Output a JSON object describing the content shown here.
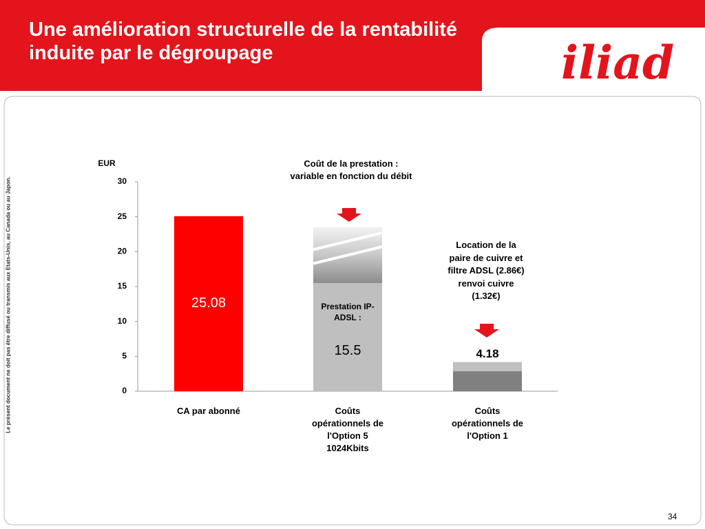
{
  "title": "Une amélioration structurelle de la rentabilité induite par le dégroupage",
  "logo": "iliad",
  "disclaimer": "Le présent document ne doit pas être diffusé ou transmis aux Etats-Unis, au Canada ou au Japon.",
  "page_number": "34",
  "chart_data": {
    "type": "bar",
    "stacked": true,
    "y_label": "EUR",
    "categories": [
      "CA par abonné",
      "Coûts opérationnels de l'Option 5 1024Kbits",
      "Coûts opérationnels de l'Option 1"
    ],
    "series": [
      {
        "color": "#ff0000",
        "values": [
          25.08,
          null,
          null
        ],
        "value_labels": [
          "25.08",
          null,
          null
        ]
      },
      {
        "name": "Prestation IP-ADSL :",
        "color": "#bfbfbf",
        "values": [
          null,
          15.5,
          null
        ],
        "value_labels": [
          null,
          "15.5",
          null
        ]
      },
      {
        "color": "gradient",
        "values": [
          null,
          8,
          null
        ]
      },
      {
        "color": "#808080",
        "values": [
          null,
          null,
          2.86
        ]
      },
      {
        "color": "#c0c0c0",
        "values": [
          null,
          null,
          1.32
        ]
      }
    ],
    "totals": [
      null,
      null,
      4.18
    ],
    "annotations": [
      "Coût de la prestation : variable en fonction du débit",
      "Location de la paire de cuivre et filtre ADSL (2.86€) renvoi cuivre (1.32€)"
    ],
    "ylim": [
      0,
      30
    ],
    "yticks": [
      0,
      5,
      10,
      15,
      20,
      25,
      30
    ]
  }
}
